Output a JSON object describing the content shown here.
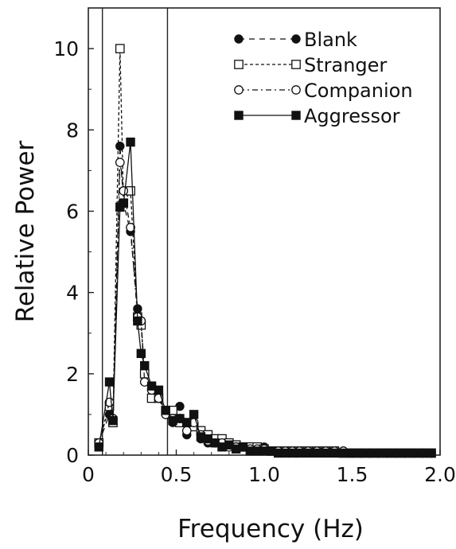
{
  "chart_data": {
    "type": "line",
    "xlabel": "Frequency (Hz)",
    "ylabel": "Relative Power",
    "xlim": [
      0,
      2.0
    ],
    "ylim": [
      0,
      11
    ],
    "x_ticks": [
      "0",
      "0.5",
      "1.0",
      "1.5",
      "2.0"
    ],
    "y_ticks": [
      "0",
      "2",
      "4",
      "6",
      "8",
      "10"
    ],
    "reference_lines_x": [
      0.08,
      0.45
    ],
    "legend_placement": "top-right",
    "series": [
      {
        "name": "Blank",
        "marker": "filled-circle",
        "line": "dash",
        "x": [
          0.06,
          0.12,
          0.14,
          0.18,
          0.2,
          0.24,
          0.28,
          0.3,
          0.32,
          0.36,
          0.4,
          0.44,
          0.48,
          0.52,
          0.56,
          0.6,
          0.64,
          0.68,
          0.72,
          0.76,
          0.8,
          0.84,
          0.88,
          0.92,
          0.96,
          1.0,
          1.04,
          1.08,
          1.12,
          1.16,
          1.2,
          1.25,
          1.3,
          1.35,
          1.4,
          1.45,
          1.5,
          1.55,
          1.6,
          1.65,
          1.7,
          1.75,
          1.8,
          1.85,
          1.9,
          1.95
        ],
        "y": [
          0.3,
          1.0,
          0.9,
          7.6,
          6.2,
          5.5,
          3.6,
          3.3,
          2.0,
          1.7,
          1.5,
          1.0,
          0.8,
          1.2,
          0.5,
          0.7,
          0.4,
          0.3,
          0.4,
          0.35,
          0.3,
          0.25,
          0.2,
          0.2,
          0.2,
          0.2,
          0.1,
          0.1,
          0.1,
          0.1,
          0.1,
          0.1,
          0.1,
          0.1,
          0.1,
          0.1,
          0.05,
          0.05,
          0.05,
          0.05,
          0.05,
          0.05,
          0.05,
          0.05,
          0.05,
          0.05
        ]
      },
      {
        "name": "Stranger",
        "marker": "open-square",
        "line": "dense-dash",
        "x": [
          0.06,
          0.12,
          0.14,
          0.18,
          0.2,
          0.24,
          0.28,
          0.3,
          0.32,
          0.36,
          0.4,
          0.44,
          0.48,
          0.52,
          0.56,
          0.6,
          0.64,
          0.68,
          0.72,
          0.76,
          0.8,
          0.84,
          0.88,
          0.92,
          0.96,
          1.0,
          1.04,
          1.08,
          1.12,
          1.16,
          1.2,
          1.25,
          1.3,
          1.35,
          1.4,
          1.45,
          1.5,
          1.55,
          1.6,
          1.65,
          1.7,
          1.75,
          1.8,
          1.85,
          1.9,
          1.95
        ],
        "y": [
          0.3,
          1.2,
          0.8,
          10.0,
          6.2,
          6.5,
          3.4,
          3.2,
          2.0,
          1.4,
          1.4,
          1.1,
          1.1,
          0.8,
          0.8,
          0.7,
          0.6,
          0.5,
          0.4,
          0.4,
          0.3,
          0.25,
          0.2,
          0.2,
          0.2,
          0.15,
          0.1,
          0.1,
          0.1,
          0.1,
          0.1,
          0.1,
          0.1,
          0.1,
          0.1,
          0.05,
          0.05,
          0.05,
          0.05,
          0.05,
          0.05,
          0.05,
          0.05,
          0.05,
          0.05,
          0.05
        ]
      },
      {
        "name": "Companion",
        "marker": "open-circle",
        "line": "dash-dot",
        "x": [
          0.06,
          0.12,
          0.14,
          0.18,
          0.2,
          0.24,
          0.28,
          0.3,
          0.32,
          0.36,
          0.4,
          0.44,
          0.48,
          0.52,
          0.56,
          0.6,
          0.64,
          0.68,
          0.72,
          0.76,
          0.8,
          0.84,
          0.88,
          0.92,
          0.96,
          1.0,
          1.04,
          1.08,
          1.12,
          1.16,
          1.2,
          1.25,
          1.3,
          1.35,
          1.4,
          1.45,
          1.5,
          1.55,
          1.6,
          1.65,
          1.7,
          1.75,
          1.8,
          1.85,
          1.9,
          1.95
        ],
        "y": [
          0.3,
          1.3,
          0.9,
          7.2,
          6.5,
          5.6,
          3.4,
          3.3,
          1.8,
          1.6,
          1.4,
          1.0,
          0.9,
          0.9,
          0.6,
          0.8,
          0.5,
          0.35,
          0.3,
          0.3,
          0.2,
          0.2,
          0.2,
          0.15,
          0.15,
          0.15,
          0.1,
          0.1,
          0.1,
          0.1,
          0.1,
          0.1,
          0.1,
          0.1,
          0.1,
          0.1,
          0.05,
          0.05,
          0.05,
          0.05,
          0.05,
          0.05,
          0.05,
          0.05,
          0.05,
          0.05
        ]
      },
      {
        "name": "Aggressor",
        "marker": "filled-square",
        "line": "solid",
        "x": [
          0.06,
          0.12,
          0.14,
          0.18,
          0.2,
          0.24,
          0.28,
          0.3,
          0.32,
          0.36,
          0.4,
          0.44,
          0.48,
          0.52,
          0.56,
          0.6,
          0.64,
          0.68,
          0.72,
          0.76,
          0.8,
          0.84,
          0.88,
          0.92,
          0.96,
          1.0,
          1.04,
          1.08,
          1.12,
          1.16,
          1.2,
          1.25,
          1.3,
          1.35,
          1.4,
          1.45,
          1.5,
          1.55,
          1.6,
          1.65,
          1.7,
          1.75,
          1.8,
          1.85,
          1.9,
          1.95
        ],
        "y": [
          0.2,
          1.8,
          0.85,
          6.1,
          6.2,
          7.7,
          3.3,
          2.5,
          2.2,
          1.7,
          1.6,
          1.1,
          0.85,
          0.9,
          0.8,
          1.0,
          0.45,
          0.4,
          0.3,
          0.2,
          0.25,
          0.15,
          0.2,
          0.1,
          0.1,
          0.1,
          0.1,
          0.05,
          0.05,
          0.05,
          0.05,
          0.05,
          0.05,
          0.05,
          0.05,
          0.05,
          0.05,
          0.05,
          0.05,
          0.05,
          0.05,
          0.05,
          0.05,
          0.05,
          0.05,
          0.05
        ]
      }
    ]
  }
}
